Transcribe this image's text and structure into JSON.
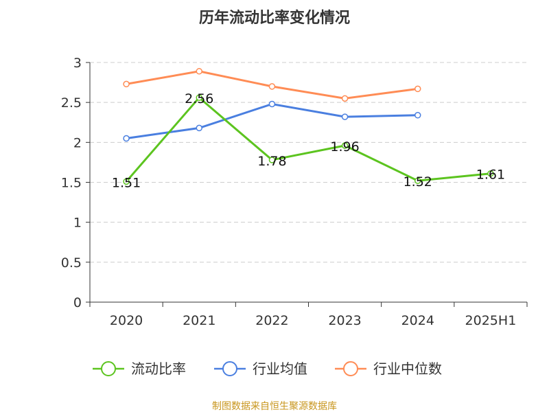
{
  "chart_data": {
    "type": "line",
    "title": "历年流动比率变化情况",
    "categories": [
      "2020",
      "2021",
      "2022",
      "2023",
      "2024",
      "2025H1"
    ],
    "ylim": [
      0,
      3
    ],
    "yticks": [
      "0",
      "0.5",
      "1",
      "1.5",
      "2",
      "2.5",
      "3"
    ],
    "grid": true,
    "legend_position": "bottom",
    "series": [
      {
        "name": "流动比率",
        "color": "#5cc41f",
        "values": [
          1.51,
          2.56,
          1.78,
          1.96,
          1.52,
          1.61
        ],
        "labels": [
          "1.51",
          "2.56",
          "1.78",
          "1.96",
          "1.52",
          "1.61"
        ]
      },
      {
        "name": "行业均值",
        "color": "#4a7fe0",
        "values": [
          2.05,
          2.18,
          2.48,
          2.32,
          2.34,
          null
        ]
      },
      {
        "name": "行业中位数",
        "color": "#ff8c55",
        "values": [
          2.73,
          2.89,
          2.7,
          2.55,
          2.67,
          null
        ]
      }
    ],
    "source": "制图数据来自恒生聚源数据库"
  }
}
